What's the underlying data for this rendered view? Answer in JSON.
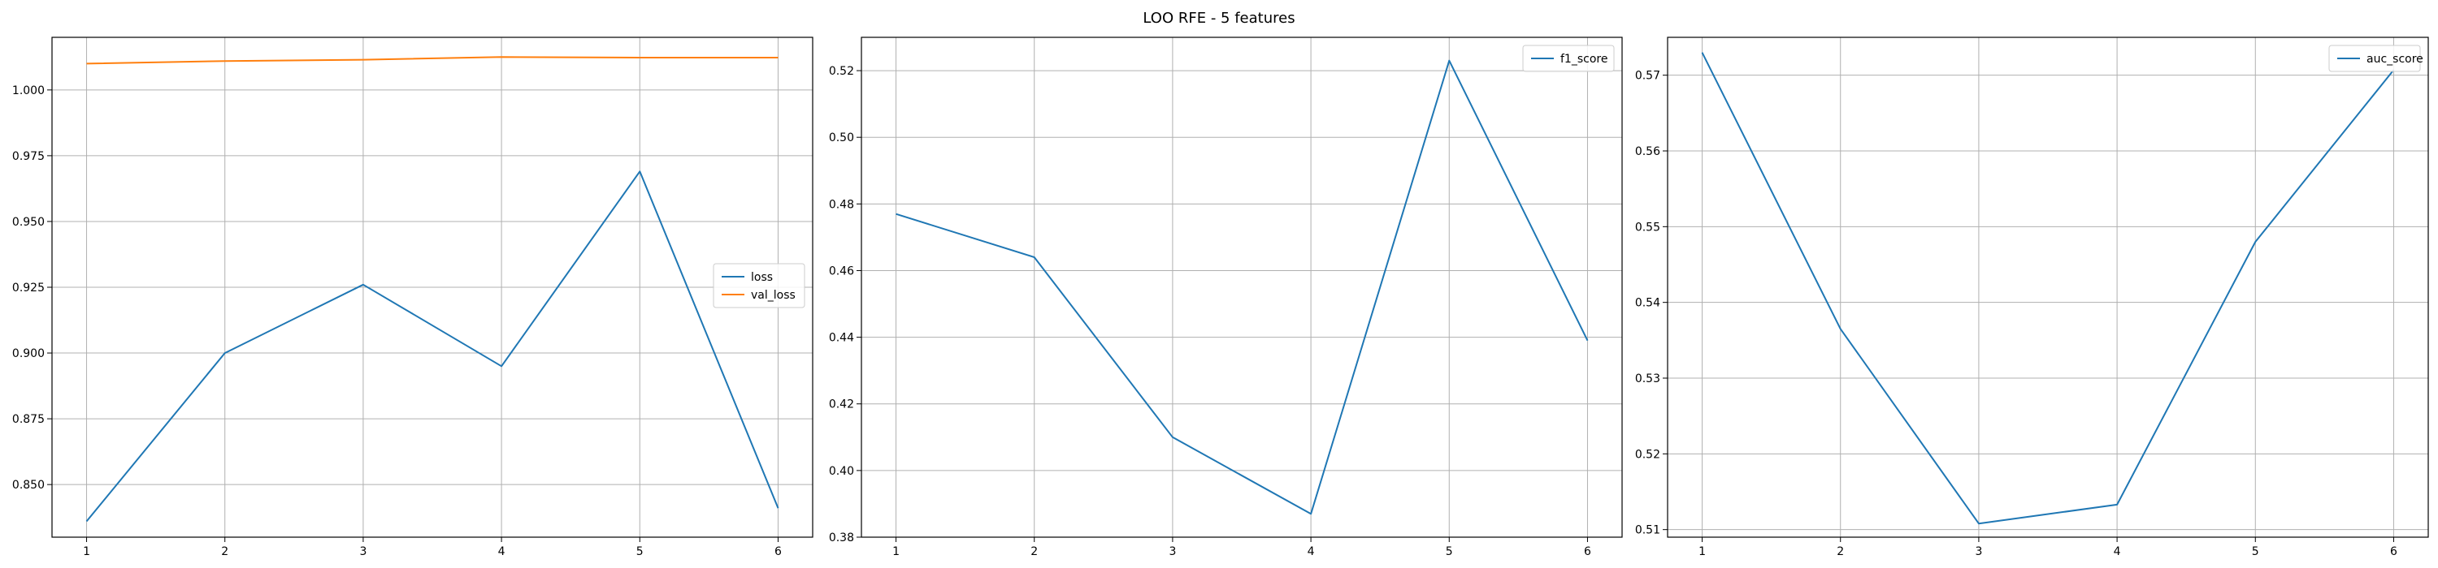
{
  "title": "LOO RFE - 5 features",
  "colors": {
    "blue": "#1f77b4",
    "orange": "#ff7f0e"
  },
  "chart_data": [
    {
      "type": "line",
      "x": [
        1,
        2,
        3,
        4,
        5,
        6
      ],
      "xticks": [
        "1",
        "2",
        "3",
        "4",
        "5",
        "6"
      ],
      "ylim": [
        0.83,
        1.02
      ],
      "yticks": [
        0.85,
        0.875,
        0.9,
        0.925,
        0.95,
        0.975,
        1.0
      ],
      "ytick_labels": [
        "0.850",
        "0.875",
        "0.900",
        "0.925",
        "0.950",
        "0.975",
        "1.000"
      ],
      "grid": true,
      "legend": "center-right",
      "series": [
        {
          "name": "loss",
          "color": "#1f77b4",
          "values": [
            0.836,
            0.9,
            0.926,
            0.895,
            0.969,
            0.841
          ]
        },
        {
          "name": "val_loss",
          "color": "#ff7f0e",
          "values": [
            1.01,
            1.011,
            1.0115,
            1.0125,
            1.0123,
            1.0123
          ]
        }
      ]
    },
    {
      "type": "line",
      "x": [
        1,
        2,
        3,
        4,
        5,
        6
      ],
      "xticks": [
        "1",
        "2",
        "3",
        "4",
        "5",
        "6"
      ],
      "ylim": [
        0.38,
        0.53
      ],
      "yticks": [
        0.38,
        0.4,
        0.42,
        0.44,
        0.46,
        0.48,
        0.5,
        0.52
      ],
      "ytick_labels": [
        "0.38",
        "0.40",
        "0.42",
        "0.44",
        "0.46",
        "0.48",
        "0.50",
        "0.52"
      ],
      "grid": true,
      "legend": "top-right",
      "series": [
        {
          "name": "f1_score",
          "color": "#1f77b4",
          "values": [
            0.477,
            0.464,
            0.41,
            0.387,
            0.523,
            0.439
          ]
        }
      ]
    },
    {
      "type": "line",
      "x": [
        1,
        2,
        3,
        4,
        5,
        6
      ],
      "xticks": [
        "1",
        "2",
        "3",
        "4",
        "5",
        "6"
      ],
      "ylim": [
        0.509,
        0.575
      ],
      "yticks": [
        0.51,
        0.52,
        0.53,
        0.54,
        0.55,
        0.56,
        0.57
      ],
      "ytick_labels": [
        "0.51",
        "0.52",
        "0.53",
        "0.54",
        "0.55",
        "0.56",
        "0.57"
      ],
      "grid": true,
      "legend": "top-right",
      "series": [
        {
          "name": "auc_score",
          "color": "#1f77b4",
          "values": [
            0.573,
            0.5365,
            0.5108,
            0.5133,
            0.548,
            0.5707
          ]
        }
      ]
    }
  ]
}
